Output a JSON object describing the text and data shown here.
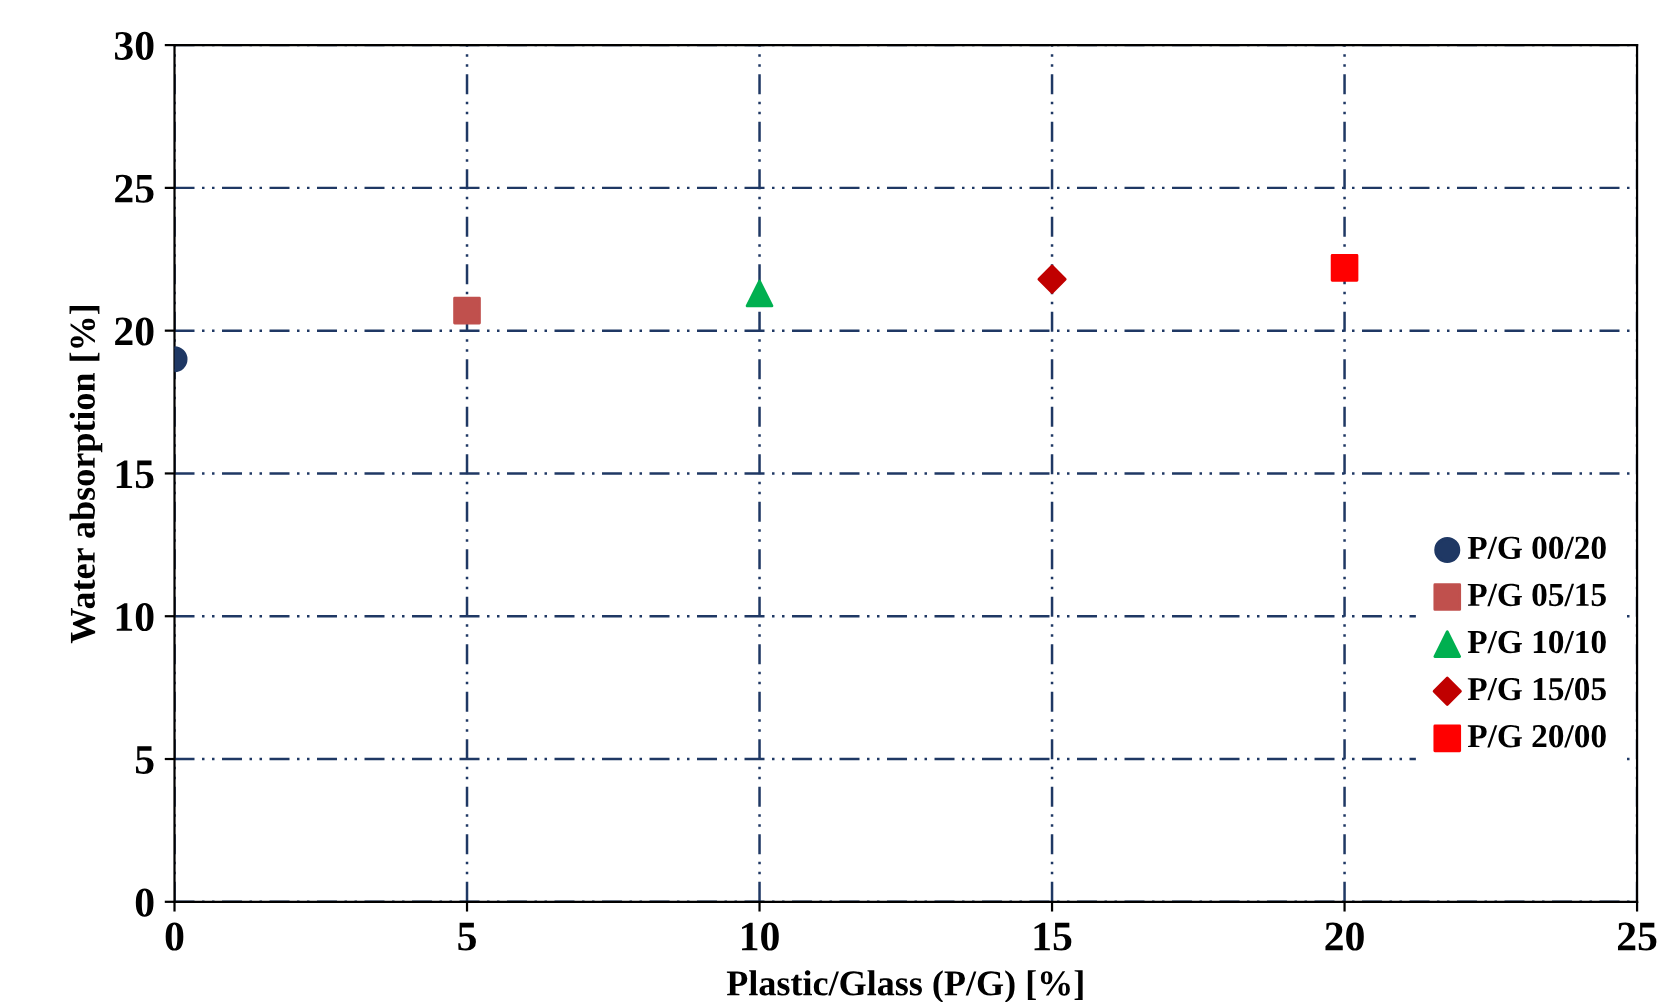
{
  "chart_data": {
    "type": "scatter",
    "xlabel": "Plastic/Glass (P/G) [%]",
    "ylabel": "Water absorption [%]",
    "xlim": [
      0,
      25
    ],
    "xticks": [
      0,
      5,
      10,
      15,
      20,
      25
    ],
    "ylim": [
      0,
      30
    ],
    "yticks": [
      0,
      5,
      10,
      15,
      20,
      25,
      30
    ],
    "grid": true,
    "legend": "right",
    "series": [
      {
        "name": "P/G 00/20",
        "color": "#1f3864",
        "marker": "circle",
        "x": [
          0
        ],
        "values": [
          19.0
        ]
      },
      {
        "name": "P/G 05/15",
        "color": "#c0504d",
        "marker": "square",
        "x": [
          5
        ],
        "values": [
          20.7
        ]
      },
      {
        "name": "P/G 10/10",
        "color": "#00b050",
        "marker": "triangle",
        "x": [
          10
        ],
        "values": [
          21.3
        ]
      },
      {
        "name": "P/G 15/05",
        "color": "#c00000",
        "marker": "diamond",
        "x": [
          15
        ],
        "values": [
          21.8
        ]
      },
      {
        "name": "P/G 20/00",
        "color": "#ff0000",
        "marker": "square",
        "x": [
          20
        ],
        "values": [
          22.2
        ]
      }
    ]
  }
}
